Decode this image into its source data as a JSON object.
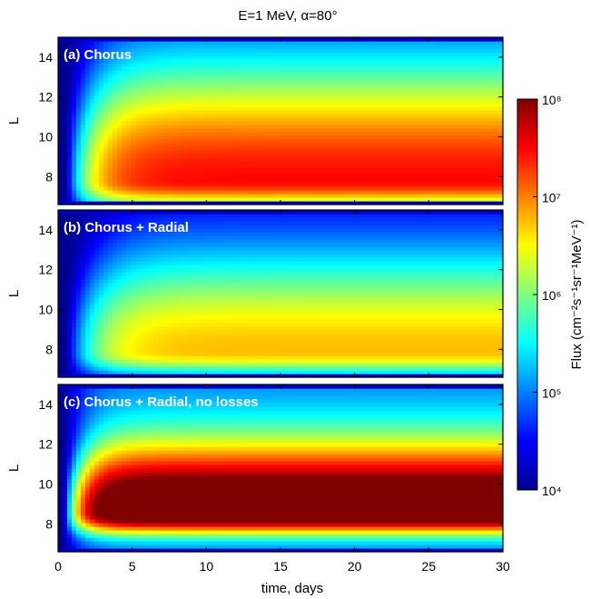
{
  "chart_data": {
    "type": "heatmap",
    "title": "E=1 MeV, α=80°",
    "xlabel": "time, days",
    "ylabel": "L",
    "xlim": [
      0,
      30
    ],
    "ylim": [
      6.6,
      15
    ],
    "xticks": [
      "0",
      "5",
      "10",
      "15",
      "20",
      "25",
      "30"
    ],
    "yticks": [
      "8",
      "10",
      "12",
      "14"
    ],
    "colorbar": {
      "label": "Flux (cm⁻²s⁻¹sr⁻¹MeV⁻¹)",
      "scale": "log",
      "range": [
        4,
        8
      ],
      "ticks": [
        "10⁴",
        "10⁵",
        "10⁶",
        "10⁷",
        "10⁸"
      ]
    },
    "panels": [
      {
        "label": "(a) Chorus",
        "peak_L": 7.8,
        "peak_log_flux": 7.3,
        "edge_log_flux": 4.3,
        "onset_days": 1.6,
        "spread_low": 0.35,
        "spread_high": 1.5
      },
      {
        "label": "(b) Chorus + Radial",
        "peak_L": 7.9,
        "peak_log_flux": 6.7,
        "edge_log_flux": 4.1,
        "onset_days": 1.8,
        "spread_low": 0.3,
        "spread_high": 1.3
      },
      {
        "label": "(c) Chorus + Radial, no losses",
        "peak_L": 8.6,
        "peak_log_flux": 7.9,
        "edge_log_flux": 5.5,
        "onset_days": 1.2,
        "spread_low": 0.25,
        "spread_high": 0.85
      }
    ]
  }
}
